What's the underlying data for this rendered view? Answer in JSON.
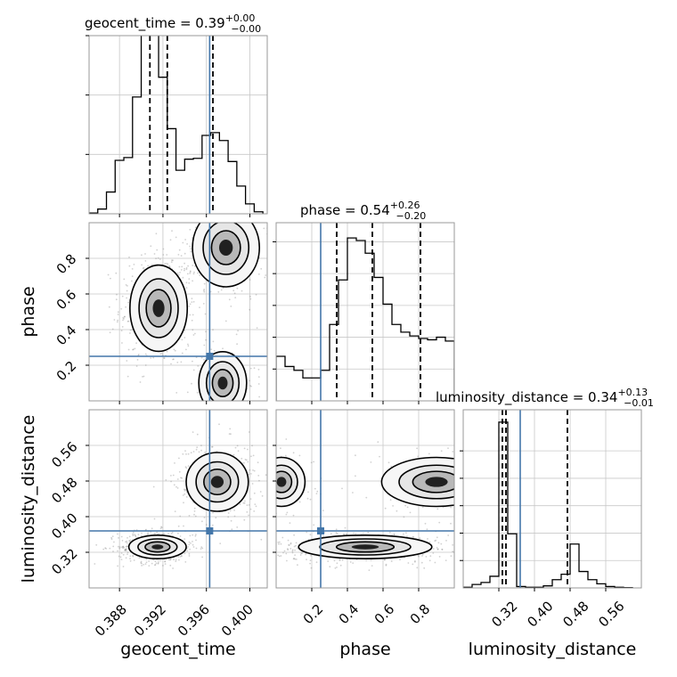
{
  "colors": {
    "truth": "#4477aa",
    "hist": "#000000",
    "grid": "#c8c8c8",
    "frame": "#999999",
    "scatter": "#7a7a7a"
  },
  "chart_data": {
    "type": "corner",
    "parameters": [
      "geocent_time",
      "phase",
      "luminosity_distance"
    ],
    "truths": {
      "geocent_time": 0.3963,
      "phase": 0.25,
      "luminosity_distance": 0.368
    },
    "grid": true,
    "marginals": [
      {
        "param": "geocent_time",
        "title_main": "geocent_time = 0.39",
        "title_plus": "+0.00",
        "title_minus": "−0.00",
        "range": [
          0.3852,
          0.4016
        ],
        "ylim": [
          0,
          450
        ],
        "quantiles": [
          0.3908,
          0.3924,
          0.3966
        ],
        "bin_edges": [
          0.3852,
          0.386,
          0.3868,
          0.3876,
          0.3884,
          0.3892,
          0.39,
          0.3908,
          0.3916,
          0.3924,
          0.3932,
          0.394,
          0.3948,
          0.3956,
          0.3964,
          0.3972,
          0.398,
          0.3988,
          0.3996,
          0.4004,
          0.4012
        ],
        "counts": [
          2,
          12,
          55,
          135,
          142,
          295,
          455,
          460,
          345,
          215,
          110,
          138,
          140,
          198,
          205,
          185,
          132,
          70,
          25,
          5
        ],
        "ticks": [
          0.388,
          0.392,
          0.396,
          0.4
        ],
        "tick_labels": [
          "0.388",
          "0.392",
          "0.396",
          "0.400"
        ],
        "yticks": [
          150,
          300,
          450
        ]
      },
      {
        "param": "phase",
        "title_main": "phase = 0.54",
        "title_plus": "+0.26",
        "title_minus": "−0.20",
        "range": [
          0.0,
          1.0
        ],
        "ylim": [
          0,
          700
        ],
        "quantiles": [
          0.34,
          0.54,
          0.81
        ],
        "bin_edges": [
          0.0,
          0.05,
          0.1,
          0.15,
          0.2,
          0.25,
          0.3,
          0.35,
          0.4,
          0.45,
          0.5,
          0.55,
          0.6,
          0.65,
          0.7,
          0.75,
          0.8,
          0.85,
          0.9,
          0.95,
          1.0
        ],
        "counts": [
          175,
          135,
          120,
          90,
          90,
          120,
          300,
          475,
          640,
          630,
          580,
          485,
          380,
          300,
          270,
          255,
          245,
          240,
          250,
          235
        ],
        "ticks": [
          0.2,
          0.4,
          0.6,
          0.8
        ],
        "tick_labels": [
          "0.2",
          "0.4",
          "0.6",
          "0.8"
        ],
        "yticks": [
          125,
          250,
          375,
          500,
          625
        ]
      },
      {
        "param": "luminosity_distance",
        "title_main": "luminosity_distance = 0.34",
        "title_plus": "+0.13",
        "title_minus": "−0.01",
        "range": [
          0.24,
          0.64
        ],
        "ylim": [
          0,
          1300
        ],
        "quantiles": [
          0.328,
          0.336,
          0.474
        ],
        "bin_edges": [
          0.24,
          0.26,
          0.28,
          0.3,
          0.32,
          0.34,
          0.36,
          0.38,
          0.4,
          0.42,
          0.44,
          0.46,
          0.48,
          0.5,
          0.52,
          0.54,
          0.56,
          0.58,
          0.6,
          0.62
        ],
        "counts": [
          5,
          25,
          40,
          85,
          1210,
          395,
          10,
          5,
          5,
          15,
          60,
          100,
          320,
          120,
          60,
          30,
          10,
          5,
          2
        ],
        "ticks": [
          0.32,
          0.4,
          0.48,
          0.56
        ],
        "tick_labels": [
          "0.32",
          "0.40",
          "0.48",
          "0.56"
        ],
        "yticks": [
          200,
          400,
          600,
          800,
          1000
        ]
      }
    ],
    "joints": [
      {
        "x": "geocent_time",
        "y": "phase",
        "xlim": [
          0.3852,
          0.4016
        ],
        "ylim": [
          0.0,
          1.0
        ],
        "yticks": [
          0.2,
          0.4,
          0.6,
          0.8
        ],
        "ytick_labels": [
          "0.2",
          "0.4",
          "0.6",
          "0.8"
        ],
        "clusters": [
          {
            "cx": 0.3916,
            "cy": 0.52,
            "sx": 0.0012,
            "sy": 0.11,
            "weight": 0.55
          },
          {
            "cx": 0.3978,
            "cy": 0.86,
            "sx": 0.0014,
            "sy": 0.1,
            "weight": 0.3
          },
          {
            "cx": 0.3975,
            "cy": 0.1,
            "sx": 0.001,
            "sy": 0.08,
            "weight": 0.15
          }
        ]
      },
      {
        "x": "geocent_time",
        "y": "luminosity_distance",
        "xlim": [
          0.3852,
          0.4016
        ],
        "ylim": [
          0.24,
          0.64
        ],
        "yticks": [
          0.32,
          0.4,
          0.48,
          0.56
        ],
        "ytick_labels": [
          "0.32",
          "0.40",
          "0.48",
          "0.56"
        ],
        "clusters": [
          {
            "cx": 0.3915,
            "cy": 0.332,
            "sx": 0.0012,
            "sy": 0.012,
            "weight": 0.6
          },
          {
            "cx": 0.397,
            "cy": 0.478,
            "sx": 0.0013,
            "sy": 0.03,
            "weight": 0.4
          }
        ]
      },
      {
        "x": "phase",
        "y": "luminosity_distance",
        "xlim": [
          0.0,
          1.0
        ],
        "ylim": [
          0.24,
          0.64
        ],
        "clusters": [
          {
            "cx": 0.5,
            "cy": 0.332,
            "sx": 0.17,
            "sy": 0.012,
            "weight": 0.6
          },
          {
            "cx": 0.9,
            "cy": 0.478,
            "sx": 0.14,
            "sy": 0.025,
            "weight": 0.25
          },
          {
            "cx": 0.03,
            "cy": 0.478,
            "sx": 0.06,
            "sy": 0.025,
            "weight": 0.15
          }
        ]
      }
    ],
    "axis_labels": {
      "bottom": [
        "geocent_time",
        "phase",
        "luminosity_distance"
      ],
      "left": [
        "phase",
        "luminosity_distance"
      ]
    }
  }
}
